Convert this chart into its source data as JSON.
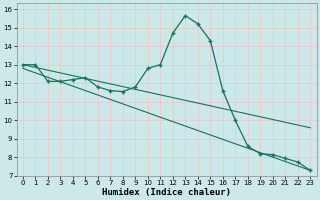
{
  "xlabel": "Humidex (Indice chaleur)",
  "background_color": "#cce8e8",
  "line_color": "#1a7060",
  "grid_color": "#e8c8c8",
  "xlim": [
    -0.5,
    23.5
  ],
  "ylim": [
    7,
    16.3
  ],
  "xticks": [
    0,
    1,
    2,
    3,
    4,
    5,
    6,
    7,
    8,
    9,
    10,
    11,
    12,
    13,
    14,
    15,
    16,
    17,
    18,
    19,
    20,
    21,
    22,
    23
  ],
  "yticks": [
    7,
    8,
    9,
    10,
    11,
    12,
    13,
    14,
    15,
    16
  ],
  "series1_x": [
    0,
    1,
    2,
    3,
    4,
    5,
    6,
    7,
    8,
    9,
    10,
    11,
    12,
    13,
    14,
    15,
    16,
    17,
    18,
    19,
    20,
    21,
    22,
    23
  ],
  "series1_y": [
    13.0,
    13.0,
    12.1,
    12.1,
    12.2,
    12.3,
    11.8,
    11.6,
    11.55,
    11.8,
    12.8,
    13.0,
    14.7,
    15.65,
    15.2,
    14.3,
    11.6,
    10.0,
    8.6,
    8.2,
    8.15,
    7.95,
    7.75,
    7.3
  ],
  "series2_x": [
    0,
    23
  ],
  "series2_y": [
    13.0,
    9.6
  ],
  "series3_x": [
    0,
    23
  ],
  "series3_y": [
    12.8,
    7.3
  ]
}
